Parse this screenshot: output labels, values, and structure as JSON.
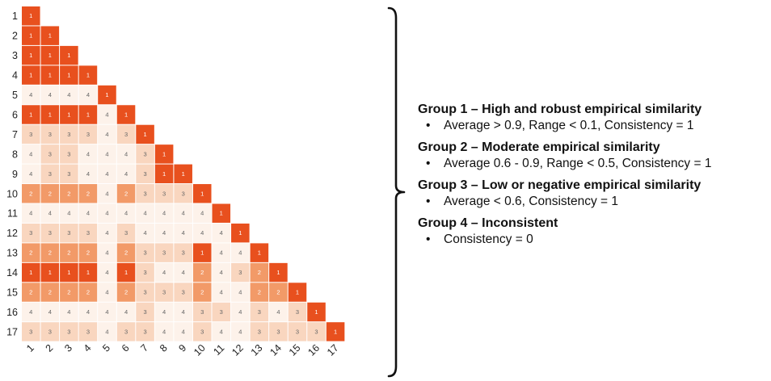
{
  "chart_data": {
    "type": "heatmap",
    "row_labels": [
      "1",
      "2",
      "3",
      "4",
      "5",
      "6",
      "7",
      "8",
      "9",
      "10",
      "11",
      "12",
      "13",
      "14",
      "15",
      "16",
      "17"
    ],
    "col_labels": [
      "1",
      "2",
      "3",
      "4",
      "5",
      "6",
      "7",
      "8",
      "9",
      "10",
      "11",
      "12",
      "13",
      "14",
      "15",
      "16",
      "17"
    ],
    "matrix": [
      [
        1
      ],
      [
        1,
        1
      ],
      [
        1,
        1,
        1
      ],
      [
        1,
        1,
        1,
        1
      ],
      [
        4,
        4,
        4,
        4,
        1
      ],
      [
        1,
        1,
        1,
        1,
        4,
        1
      ],
      [
        3,
        3,
        3,
        3,
        4,
        3,
        1
      ],
      [
        4,
        3,
        3,
        4,
        4,
        4,
        3,
        1
      ],
      [
        4,
        3,
        3,
        4,
        4,
        4,
        3,
        1,
        1
      ],
      [
        2,
        2,
        2,
        2,
        4,
        2,
        3,
        3,
        3,
        1
      ],
      [
        4,
        4,
        4,
        4,
        4,
        4,
        4,
        4,
        4,
        4,
        1
      ],
      [
        3,
        3,
        3,
        3,
        4,
        3,
        4,
        4,
        4,
        4,
        4,
        1
      ],
      [
        2,
        2,
        2,
        2,
        4,
        2,
        3,
        3,
        3,
        1,
        4,
        4,
        1
      ],
      [
        1,
        1,
        1,
        1,
        4,
        1,
        3,
        4,
        4,
        2,
        4,
        3,
        2,
        1
      ],
      [
        2,
        2,
        2,
        2,
        4,
        2,
        3,
        3,
        3,
        2,
        4,
        4,
        2,
        2,
        1
      ],
      [
        4,
        4,
        4,
        4,
        4,
        4,
        3,
        4,
        4,
        3,
        3,
        4,
        3,
        4,
        3,
        1
      ],
      [
        3,
        3,
        3,
        3,
        4,
        3,
        3,
        4,
        4,
        3,
        4,
        4,
        3,
        3,
        3,
        3,
        1
      ]
    ],
    "groups": [
      {
        "title": "Group 1 – High and robust empirical similarity",
        "criteria": "Average > 0.9, Range < 0.1, Consistency = 1"
      },
      {
        "title": "Group 2 – Moderate empirical similarity",
        "criteria": "Average 0.6 - 0.9, Range < 0.5, Consistency = 1"
      },
      {
        "title": "Group 3 – Low or negative empirical similarity",
        "criteria": "Average < 0.6, Consistency = 1"
      },
      {
        "title": "Group 4 – Inconsistent",
        "criteria": "Consistency = 0"
      }
    ],
    "bullet_symbol": "•",
    "colors": {
      "1": "#e8501e",
      "2": "#f29a68",
      "3": "#f9d6bf",
      "4": "#fdf2ea",
      "cell_text_light": "#ffffff",
      "cell_text_dark": "#666666",
      "axis_text": "#222222",
      "bracket": "#111111"
    }
  }
}
